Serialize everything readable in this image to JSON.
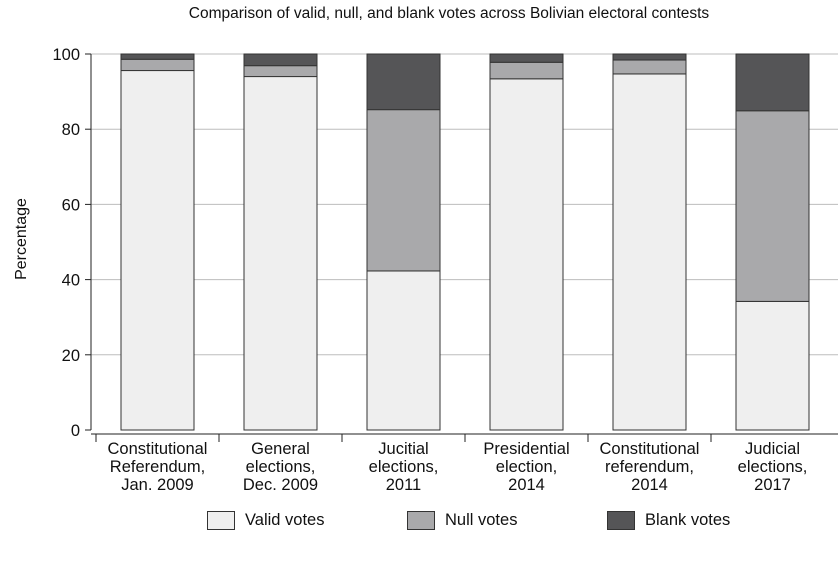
{
  "chart_data": {
    "type": "bar",
    "stacked": true,
    "title": "Comparison of valid, null, and blank votes across Bolivian electoral contests",
    "xlabel": "",
    "ylabel": "Percentage",
    "ylim": [
      0,
      100
    ],
    "yticks": [
      0,
      20,
      40,
      60,
      80,
      100
    ],
    "grid": true,
    "legend_position": "bottom",
    "categories": [
      [
        "Constitutional",
        "Referendum,",
        "Jan. 2009"
      ],
      [
        "General",
        "elections,",
        "Dec. 2009"
      ],
      [
        "Jucitial",
        "elections,",
        "2011"
      ],
      [
        "Presidential",
        "election,",
        "2014"
      ],
      [
        "Constitutional",
        "referendum,",
        "2014"
      ],
      [
        "Judicial",
        "elections,",
        "2017"
      ]
    ],
    "series": [
      {
        "name": "Valid votes",
        "color": "#efefef",
        "values": [
          95.6,
          94.0,
          42.3,
          93.4,
          94.7,
          34.2
        ]
      },
      {
        "name": "Null votes",
        "color": "#a9a9ab",
        "values": [
          3.0,
          2.9,
          42.9,
          4.4,
          3.7,
          50.7
        ]
      },
      {
        "name": "Blank votes",
        "color": "#555557",
        "values": [
          1.4,
          3.1,
          14.8,
          2.2,
          1.6,
          15.1
        ]
      }
    ]
  }
}
